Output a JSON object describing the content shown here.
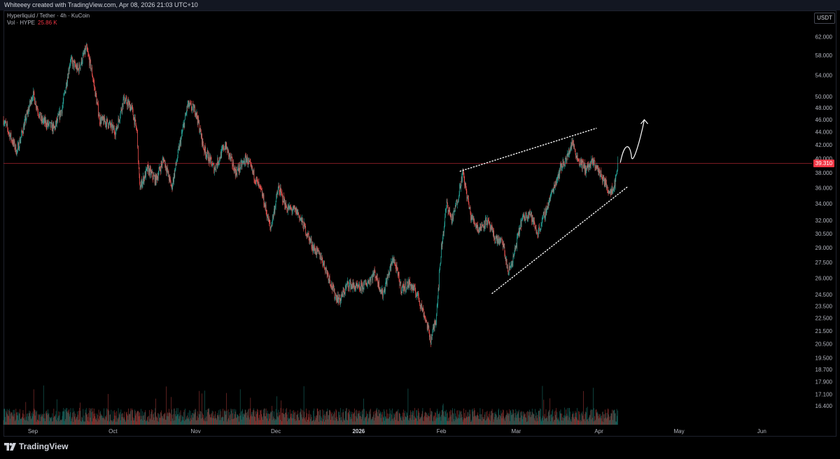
{
  "header": {
    "attribution": "Whiteeey created with TradingView.com, Apr 08, 2026 21:03 UTC+10"
  },
  "legend": {
    "symbol": "Hyperliquid / Tether · 4h · KuCoin",
    "volume_label": "Vol · HYPE",
    "volume_value": "25.86 K"
  },
  "currency_button": "USDT",
  "brand": "TradingView",
  "colors": {
    "up": "#26a69a",
    "down": "#ef5350",
    "price_line": "#f23645",
    "annotation": "#ffffff"
  },
  "chart_data": {
    "type": "candlestick",
    "title": "",
    "xlabel": "",
    "ylabel": "",
    "y_scale": "log",
    "ylim": [
      16.0,
      64.0
    ],
    "x_range": [
      "2025-08-21",
      "2026-06-19"
    ],
    "x_ticks": [
      {
        "label": "Sep",
        "date": "2025-09-01"
      },
      {
        "label": "Oct",
        "date": "2025-10-01"
      },
      {
        "label": "Nov",
        "date": "2025-11-01"
      },
      {
        "label": "Dec",
        "date": "2025-12-01"
      },
      {
        "label": "2026",
        "date": "2026-01-01"
      },
      {
        "label": "Feb",
        "date": "2026-02-01"
      },
      {
        "label": "Mar",
        "date": "2026-03-01"
      },
      {
        "label": "Apr",
        "date": "2026-04-01"
      },
      {
        "label": "May",
        "date": "2026-05-01"
      },
      {
        "label": "Jun",
        "date": "2026-06-01"
      }
    ],
    "y_ticks": [
      "62.000",
      "58.000",
      "54.000",
      "50.000",
      "48.000",
      "46.000",
      "44.000",
      "42.000",
      "40.000",
      "38.000",
      "36.000",
      "34.000",
      "32.000",
      "30.500",
      "29.000",
      "27.500",
      "26.000",
      "24.500",
      "23.500",
      "22.500",
      "21.500",
      "20.500",
      "19.500",
      "18.700",
      "17.900",
      "17.100",
      "16.400"
    ],
    "last_price": "39.310",
    "price_path": [
      {
        "date": "2025-08-21",
        "close": 46.0
      },
      {
        "date": "2025-08-26",
        "close": 41.0
      },
      {
        "date": "2025-09-01",
        "close": 50.5
      },
      {
        "date": "2025-09-04",
        "close": 46.0
      },
      {
        "date": "2025-09-09",
        "close": 44.5
      },
      {
        "date": "2025-09-12",
        "close": 48.0
      },
      {
        "date": "2025-09-15",
        "close": 57.0
      },
      {
        "date": "2025-09-18",
        "close": 55.0
      },
      {
        "date": "2025-09-21",
        "close": 59.5
      },
      {
        "date": "2025-09-23",
        "close": 55.0
      },
      {
        "date": "2025-09-26",
        "close": 46.0
      },
      {
        "date": "2025-09-29",
        "close": 45.5
      },
      {
        "date": "2025-10-02",
        "close": 44.0
      },
      {
        "date": "2025-10-05",
        "close": 49.5
      },
      {
        "date": "2025-10-08",
        "close": 48.0
      },
      {
        "date": "2025-10-10",
        "close": 44.0
      },
      {
        "date": "2025-10-11",
        "close": 36.0
      },
      {
        "date": "2025-10-14",
        "close": 38.5
      },
      {
        "date": "2025-10-17",
        "close": 37.0
      },
      {
        "date": "2025-10-20",
        "close": 40.0
      },
      {
        "date": "2025-10-23",
        "close": 36.0
      },
      {
        "date": "2025-10-26",
        "close": 42.0
      },
      {
        "date": "2025-10-29",
        "close": 48.5
      },
      {
        "date": "2025-11-01",
        "close": 47.5
      },
      {
        "date": "2025-11-04",
        "close": 41.5
      },
      {
        "date": "2025-11-08",
        "close": 38.5
      },
      {
        "date": "2025-11-12",
        "close": 42.0
      },
      {
        "date": "2025-11-16",
        "close": 38.0
      },
      {
        "date": "2025-11-20",
        "close": 40.0
      },
      {
        "date": "2025-11-23",
        "close": 37.5
      },
      {
        "date": "2025-11-26",
        "close": 35.0
      },
      {
        "date": "2025-11-29",
        "close": 31.0
      },
      {
        "date": "2025-12-02",
        "close": 36.0
      },
      {
        "date": "2025-12-05",
        "close": 33.5
      },
      {
        "date": "2025-12-09",
        "close": 33.0
      },
      {
        "date": "2025-12-12",
        "close": 31.0
      },
      {
        "date": "2025-12-15",
        "close": 29.0
      },
      {
        "date": "2025-12-18",
        "close": 28.0
      },
      {
        "date": "2025-12-21",
        "close": 26.0
      },
      {
        "date": "2025-12-23",
        "close": 24.5
      },
      {
        "date": "2025-12-25",
        "close": 24.0
      },
      {
        "date": "2025-12-28",
        "close": 25.5
      },
      {
        "date": "2026-01-01",
        "close": 25.0
      },
      {
        "date": "2026-01-04",
        "close": 25.5
      },
      {
        "date": "2026-01-07",
        "close": 26.5
      },
      {
        "date": "2026-01-10",
        "close": 24.5
      },
      {
        "date": "2026-01-14",
        "close": 28.0
      },
      {
        "date": "2026-01-17",
        "close": 25.0
      },
      {
        "date": "2026-01-20",
        "close": 25.5
      },
      {
        "date": "2026-01-23",
        "close": 24.5
      },
      {
        "date": "2026-01-26",
        "close": 22.5
      },
      {
        "date": "2026-01-28",
        "close": 20.8
      },
      {
        "date": "2026-01-30",
        "close": 22.5
      },
      {
        "date": "2026-02-01",
        "close": 29.0
      },
      {
        "date": "2026-02-03",
        "close": 34.0
      },
      {
        "date": "2026-02-05",
        "close": 32.0
      },
      {
        "date": "2026-02-07",
        "close": 34.5
      },
      {
        "date": "2026-02-09",
        "close": 38.0
      },
      {
        "date": "2026-02-12",
        "close": 32.5
      },
      {
        "date": "2026-02-15",
        "close": 31.0
      },
      {
        "date": "2026-02-18",
        "close": 32.0
      },
      {
        "date": "2026-02-21",
        "close": 30.0
      },
      {
        "date": "2026-02-24",
        "close": 29.5
      },
      {
        "date": "2026-02-26",
        "close": 26.5
      },
      {
        "date": "2026-02-28",
        "close": 28.0
      },
      {
        "date": "2026-03-03",
        "close": 32.0
      },
      {
        "date": "2026-03-06",
        "close": 33.0
      },
      {
        "date": "2026-03-09",
        "close": 30.5
      },
      {
        "date": "2026-03-12",
        "close": 33.0
      },
      {
        "date": "2026-03-15",
        "close": 36.0
      },
      {
        "date": "2026-03-18",
        "close": 39.0
      },
      {
        "date": "2026-03-20",
        "close": 40.0
      },
      {
        "date": "2026-03-22",
        "close": 42.5
      },
      {
        "date": "2026-03-24",
        "close": 40.0
      },
      {
        "date": "2026-03-27",
        "close": 38.5
      },
      {
        "date": "2026-03-30",
        "close": 39.5
      },
      {
        "date": "2026-04-02",
        "close": 37.5
      },
      {
        "date": "2026-04-05",
        "close": 35.5
      },
      {
        "date": "2026-04-07",
        "close": 36.5
      },
      {
        "date": "2026-04-08",
        "close": 39.31
      }
    ],
    "annotations": [
      {
        "type": "dotted-line",
        "from": {
          "date": "2026-02-08",
          "price": 38.2
        },
        "to": {
          "date": "2026-03-31",
          "price": 44.6
        }
      },
      {
        "type": "dotted-line",
        "from": {
          "date": "2026-02-20",
          "price": 24.6
        },
        "to": {
          "date": "2026-04-12",
          "price": 36.2
        }
      },
      {
        "type": "curved-arrow",
        "from": {
          "date": "2026-04-09",
          "price": 39.4
        },
        "to": {
          "date": "2026-04-18",
          "price": 46.0
        }
      }
    ]
  }
}
